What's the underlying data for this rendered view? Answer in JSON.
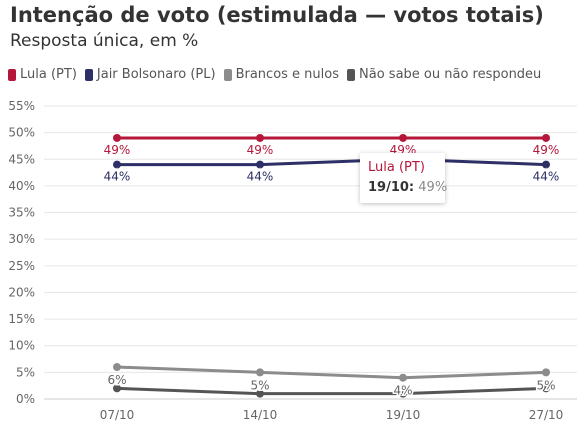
{
  "header": {
    "title": "Intenção de voto (estimulada — votos totais)",
    "subtitle": "Resposta única, em %"
  },
  "legend": {
    "items": [
      {
        "label": "Lula (PT)",
        "color": "#b5173a"
      },
      {
        "label": "Jair Bolsonaro (PL)",
        "color": "#2e2f66"
      },
      {
        "label": "Brancos e nulos",
        "color": "#8c8c8c"
      },
      {
        "label": "Não sabe ou não respondeu",
        "color": "#555555"
      }
    ]
  },
  "tooltip": {
    "series": "Lula (PT)",
    "date": "19/10:",
    "value": "49%"
  },
  "chart_data": {
    "type": "line",
    "categories": [
      "07/10",
      "14/10",
      "19/10",
      "27/10"
    ],
    "ylim": [
      0,
      55
    ],
    "yticks": [
      0,
      5,
      10,
      15,
      20,
      25,
      30,
      35,
      40,
      45,
      50,
      55
    ],
    "ytick_labels": [
      "0%",
      "5%",
      "10%",
      "15%",
      "20%",
      "25%",
      "30%",
      "35%",
      "40%",
      "45%",
      "50%",
      "55%"
    ],
    "grid": true,
    "legend_position": "top-left",
    "series": [
      {
        "name": "Lula (PT)",
        "color": "#b5173a",
        "values": [
          49,
          49,
          49,
          49
        ],
        "labels": [
          "49%",
          "49%",
          "49%",
          "49%"
        ]
      },
      {
        "name": "Jair Bolsonaro (PL)",
        "color": "#2e2f66",
        "values": [
          44,
          44,
          45,
          44
        ],
        "labels": [
          "44%",
          "44%",
          "",
          "44%"
        ]
      },
      {
        "name": "Brancos e nulos",
        "color": "#8c8c8c",
        "values": [
          6,
          5,
          4,
          5
        ],
        "labels": [
          "6%",
          "5%",
          "4%",
          "5%"
        ]
      },
      {
        "name": "Não sabe ou não respondeu",
        "color": "#555555",
        "values": [
          2,
          1,
          1,
          2
        ],
        "labels": [
          "",
          "",
          "",
          ""
        ]
      }
    ]
  }
}
